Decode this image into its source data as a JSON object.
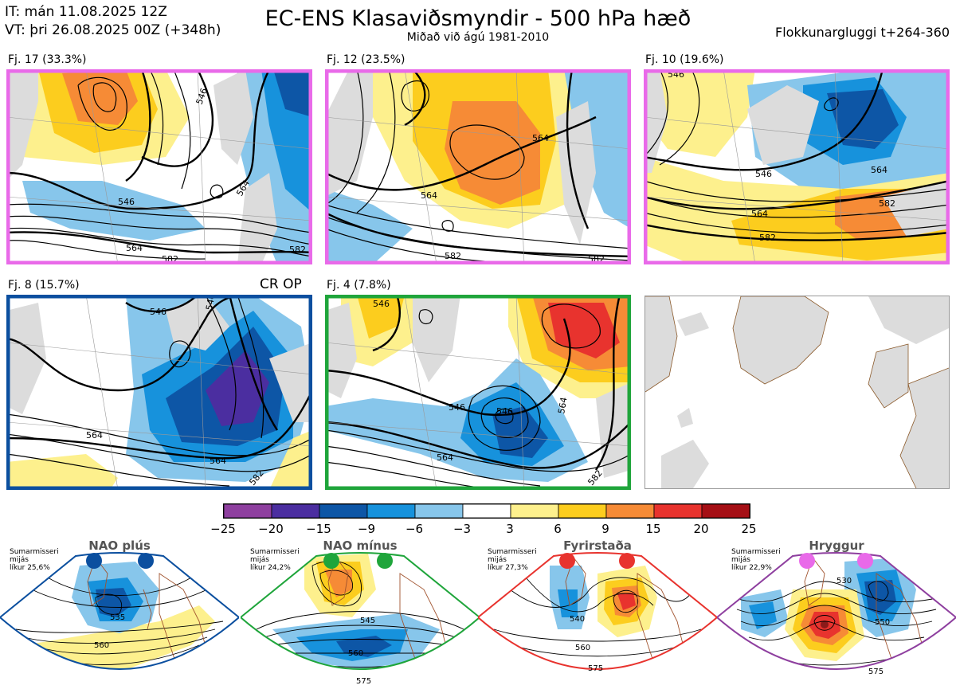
{
  "header": {
    "init_time": "IT: mán 11.08.2025 12Z",
    "valid_time": "VT: þri 26.08.2025 00Z  (+348h)",
    "title": "EC-ENS Klasaviðsmyndir - 500 hPa hæð",
    "subtitle": "Miðað við ágú 1981-2010",
    "window": "Flokkunargluggi t+264-360"
  },
  "clusters": [
    {
      "label": "Fj. 17 (33.3%)",
      "frame_color": "#e96ae9",
      "contours": [
        "546",
        "546",
        "564",
        "564",
        "582",
        "582"
      ]
    },
    {
      "label": "Fj. 12 (23.5%)",
      "frame_color": "#e96ae9",
      "contours": [
        "564",
        "564",
        "582",
        "582"
      ]
    },
    {
      "label": "Fj. 10 (19.6%)",
      "frame_color": "#e96ae9",
      "contours": [
        "546",
        "546",
        "564",
        "564",
        "582",
        "582"
      ]
    },
    {
      "label": "Fj. 8 (15.7%)",
      "frame_color": "#0b4f9f",
      "extra": "CR OP",
      "contours": [
        "546",
        "546",
        "564",
        "564",
        "582"
      ]
    },
    {
      "label": "Fj. 4 (7.8%)",
      "frame_color": "#1fa53b",
      "contours": [
        "546",
        "546",
        "546",
        "564",
        "564",
        "582"
      ]
    }
  ],
  "colorbar": {
    "ticks": [
      "−25",
      "−20",
      "−15",
      "−9",
      "−6",
      "−3",
      "3",
      "6",
      "9",
      "15",
      "20",
      "25"
    ],
    "colors": [
      "#8e3f9f",
      "#4b2ea0",
      "#0d56a6",
      "#1792dc",
      "#87c6eb",
      "#ffffff",
      "#fdf08d",
      "#fccd1e",
      "#f68b36",
      "#e8332e",
      "#a50f15"
    ]
  },
  "regimes": [
    {
      "name": "NAO plús",
      "info": [
        "Sumarmisseri",
        "mijás",
        "líkur 25,6%"
      ],
      "color": "#0b4f9f",
      "contours": [
        "535",
        "560"
      ]
    },
    {
      "name": "NAO mínus",
      "info": [
        "Sumarmisseri",
        "mijás",
        "líkur 24,2%"
      ],
      "color": "#1fa53b",
      "contours": [
        "545",
        "560",
        "575"
      ]
    },
    {
      "name": "Fyrirstaða",
      "info": [
        "Sumarmisseri",
        "mijás",
        "líkur 27,3%"
      ],
      "color": "#e8332e",
      "contours": [
        "540",
        "560",
        "575"
      ]
    },
    {
      "name": "Hryggur",
      "info": [
        "Sumarmisseri",
        "mijás",
        "líkur 22,9%"
      ],
      "color": "#e96ae9",
      "contours": [
        "530",
        "550",
        "575"
      ]
    }
  ]
}
